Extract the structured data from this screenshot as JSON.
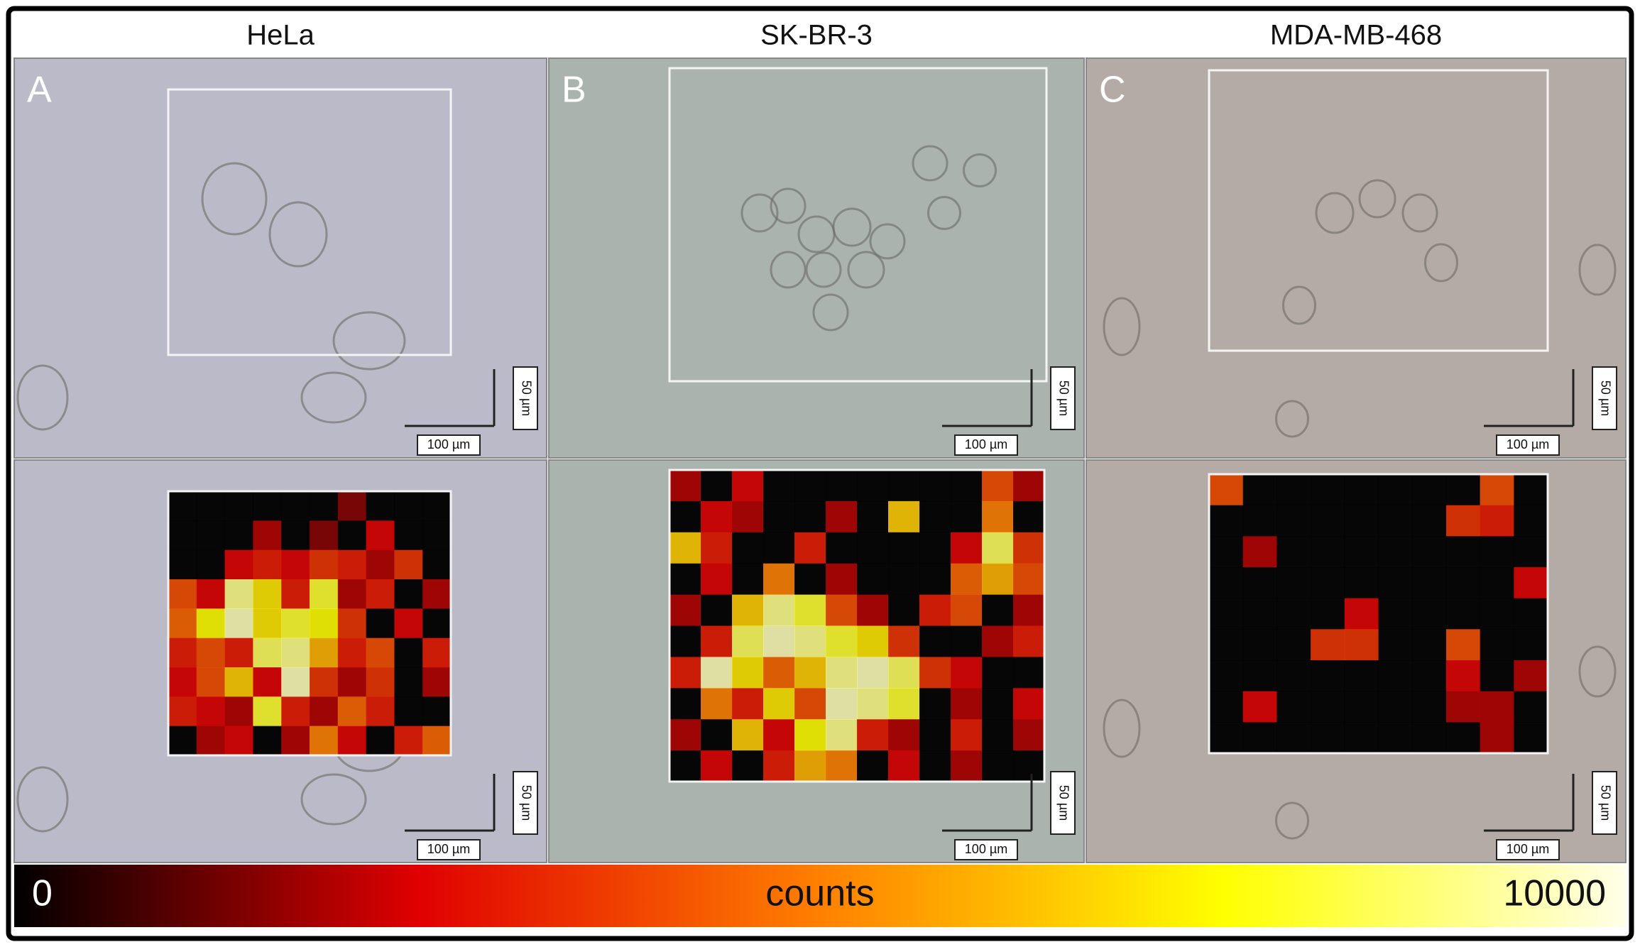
{
  "panels": [
    {
      "header": "HeLa",
      "letter": "A",
      "bg": "#bbbac9",
      "scale_bars": [
        {
          "x": "100 µm",
          "y": "50 µm"
        },
        {
          "x": "100 µm",
          "y": "50 µm"
        }
      ],
      "heatmap": [
        [
          0,
          0,
          0,
          0,
          0,
          0,
          1500,
          0,
          0,
          0
        ],
        [
          0,
          0,
          0,
          2000,
          0,
          1500,
          0,
          2500,
          0,
          0
        ],
        [
          0,
          0,
          2500,
          3000,
          2500,
          3500,
          3000,
          2000,
          3500,
          0
        ],
        [
          4000,
          2500,
          9000,
          7000,
          3000,
          8000,
          2000,
          3000,
          0,
          2000
        ],
        [
          4500,
          7500,
          9500,
          7000,
          8000,
          7500,
          3500,
          0,
          2500,
          0
        ],
        [
          3000,
          4000,
          3000,
          8500,
          9000,
          6000,
          3000,
          4000,
          0,
          3000
        ],
        [
          2500,
          4000,
          6500,
          2500,
          9500,
          3500,
          2000,
          3500,
          0,
          2000
        ],
        [
          3000,
          2500,
          2000,
          8000,
          3000,
          2000,
          4500,
          3000,
          0,
          0
        ],
        [
          0,
          2000,
          2500,
          0,
          2000,
          5000,
          2500,
          0,
          3000,
          4500
        ]
      ]
    },
    {
      "header": "SK-BR-3",
      "letter": "B",
      "bg": "#aab3ad",
      "scale_bars": [
        {
          "x": "100 µm",
          "y": "50 µm"
        },
        {
          "x": "100 µm",
          "y": "50 µm"
        }
      ],
      "heatmap": [
        [
          2000,
          0,
          2500,
          0,
          0,
          0,
          0,
          0,
          0,
          0,
          4000,
          2000
        ],
        [
          0,
          2500,
          2000,
          0,
          0,
          2000,
          0,
          6500,
          0,
          0,
          5000,
          0
        ],
        [
          6500,
          3000,
          0,
          0,
          3000,
          0,
          0,
          0,
          0,
          2500,
          8500,
          3500
        ],
        [
          0,
          2500,
          0,
          5000,
          0,
          2000,
          0,
          0,
          0,
          4500,
          6000,
          4000
        ],
        [
          2000,
          0,
          6500,
          9000,
          8000,
          4000,
          2000,
          0,
          3000,
          4000,
          0,
          2000
        ],
        [
          0,
          3000,
          8500,
          9500,
          9000,
          8000,
          7000,
          3500,
          0,
          0,
          2000,
          3000
        ],
        [
          3000,
          9500,
          7000,
          4500,
          6500,
          9000,
          9500,
          8500,
          3500,
          2500,
          0,
          0
        ],
        [
          0,
          5000,
          3000,
          7000,
          4000,
          9500,
          9000,
          8000,
          0,
          2000,
          0,
          2500
        ],
        [
          2000,
          0,
          6500,
          2500,
          7500,
          9000,
          3000,
          2000,
          0,
          3000,
          0,
          2000
        ],
        [
          0,
          2500,
          0,
          3000,
          6000,
          5000,
          0,
          2500,
          0,
          2000,
          0,
          0
        ]
      ]
    },
    {
      "header": "MDA-MB-468",
      "letter": "C",
      "bg": "#b4aba6",
      "scale_bars": [
        {
          "x": "100 µm",
          "y": "50 µm"
        },
        {
          "x": "100 µm",
          "y": "50 µm"
        }
      ],
      "heatmap": [
        [
          4000,
          0,
          0,
          0,
          0,
          0,
          0,
          0,
          4000,
          0
        ],
        [
          0,
          0,
          0,
          0,
          0,
          0,
          0,
          3500,
          3000,
          0
        ],
        [
          0,
          2000,
          0,
          0,
          0,
          0,
          0,
          0,
          0,
          0
        ],
        [
          0,
          0,
          0,
          0,
          0,
          0,
          0,
          0,
          0,
          2500
        ],
        [
          0,
          0,
          0,
          0,
          2500,
          0,
          0,
          0,
          0,
          0
        ],
        [
          0,
          0,
          0,
          3500,
          3500,
          0,
          0,
          4000,
          0,
          0
        ],
        [
          0,
          0,
          0,
          0,
          0,
          0,
          0,
          2500,
          0,
          2000
        ],
        [
          0,
          2500,
          0,
          0,
          0,
          0,
          0,
          2000,
          2000,
          0
        ],
        [
          0,
          0,
          0,
          0,
          0,
          0,
          0,
          0,
          2000,
          0
        ]
      ]
    }
  ],
  "colorbar": {
    "min": 0,
    "max": 10000,
    "label": "counts",
    "colors": [
      "#000000",
      "#e00000",
      "#ff8000",
      "#ffff00",
      "#ffffe8"
    ]
  }
}
